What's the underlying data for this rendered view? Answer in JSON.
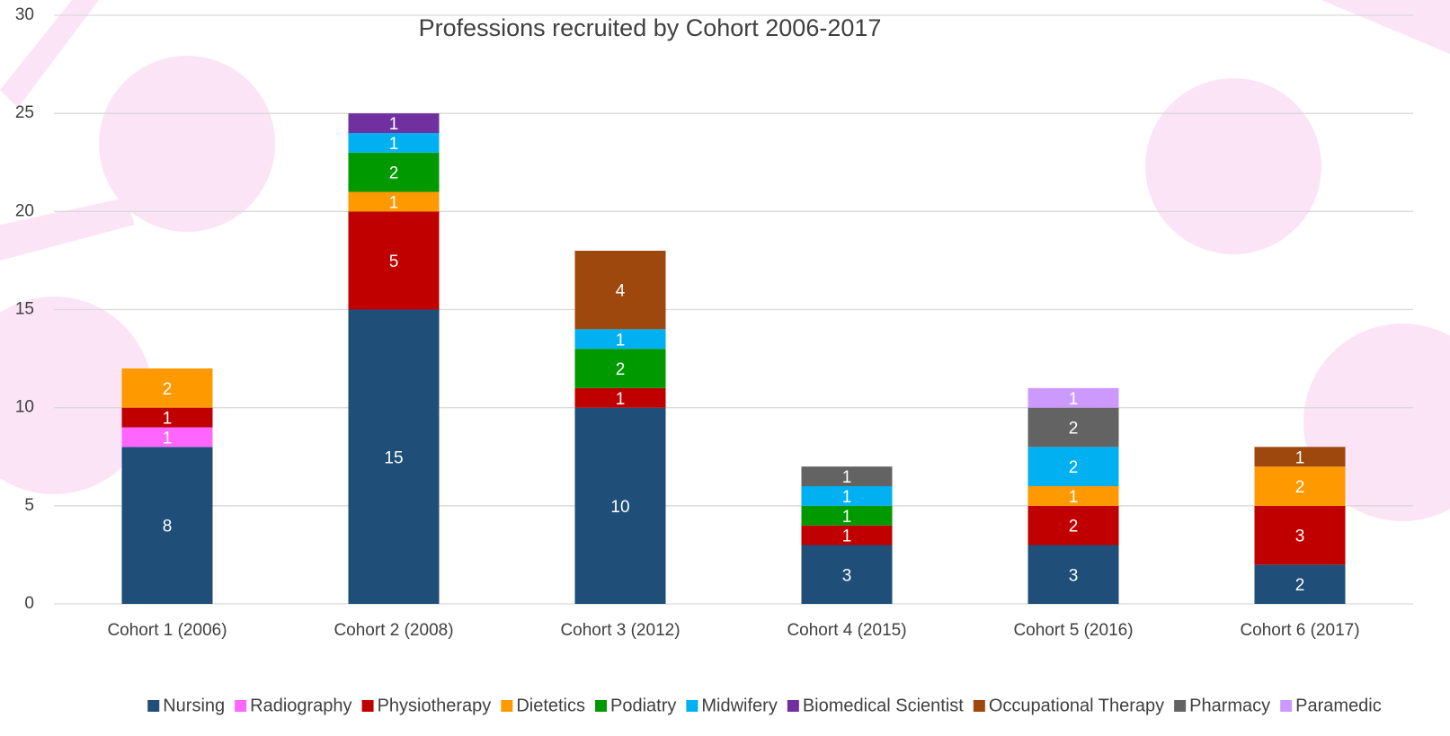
{
  "chart_data": {
    "type": "stacked_bar",
    "title": "Professions recruited by Cohort 2006-2017",
    "categories": [
      "Cohort 1 (2006)",
      "Cohort 2 (2008)",
      "Cohort 3 (2012)",
      "Cohort 4 (2015)",
      "Cohort 5 (2016)",
      "Cohort 6 (2017)"
    ],
    "series": [
      {
        "name": "Nursing",
        "color": "#1f4e79",
        "values": [
          8,
          15,
          10,
          3,
          3,
          2
        ]
      },
      {
        "name": "Radiography",
        "color": "#ff66ff",
        "values": [
          1,
          null,
          null,
          null,
          null,
          null
        ]
      },
      {
        "name": "Physiotherapy",
        "color": "#c00000",
        "values": [
          1,
          5,
          1,
          1,
          2,
          3
        ]
      },
      {
        "name": "Dietetics",
        "color": "#ff9900",
        "values": [
          2,
          1,
          null,
          null,
          1,
          2
        ]
      },
      {
        "name": "Podiatry",
        "color": "#009900",
        "values": [
          null,
          2,
          2,
          1,
          null,
          null
        ]
      },
      {
        "name": "Midwifery",
        "color": "#00b0f0",
        "values": [
          null,
          1,
          1,
          1,
          2,
          null
        ]
      },
      {
        "name": "Biomedical Scientist",
        "color": "#7030a0",
        "values": [
          null,
          1,
          null,
          null,
          null,
          null
        ]
      },
      {
        "name": "Occupational Therapy",
        "color": "#9e480e",
        "values": [
          null,
          null,
          4,
          null,
          null,
          1
        ]
      },
      {
        "name": "Pharmacy",
        "color": "#636363",
        "values": [
          null,
          null,
          null,
          1,
          2,
          null
        ]
      },
      {
        "name": "Paramedic",
        "color": "#cc99ff",
        "values": [
          null,
          null,
          null,
          null,
          1,
          null
        ]
      }
    ],
    "ylim": [
      0,
      30
    ],
    "yticks": [
      0,
      5,
      10,
      15,
      20,
      25,
      30
    ],
    "grid": true,
    "legend": "bottom"
  }
}
